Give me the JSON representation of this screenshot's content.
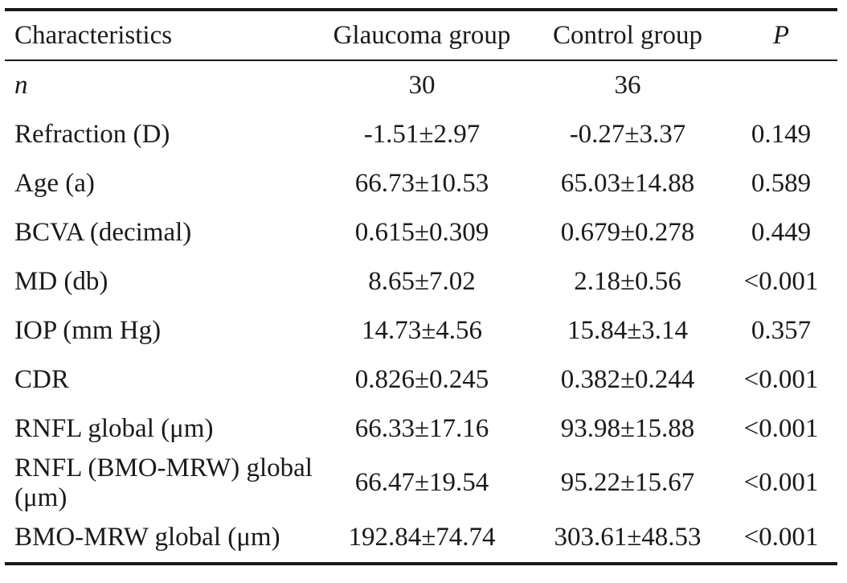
{
  "table": {
    "headers": {
      "characteristics": "Characteristics",
      "glaucoma": "Glaucoma group",
      "control": "Control group",
      "p": "P"
    },
    "rows": [
      {
        "label": "n",
        "glaucoma": "30",
        "control": "36",
        "p": ""
      },
      {
        "label": "Refraction (D)",
        "glaucoma": "-1.51±2.97",
        "control": "-0.27±3.37",
        "p": "0.149"
      },
      {
        "label": "Age (a)",
        "glaucoma": "66.73±10.53",
        "control": "65.03±14.88",
        "p": "0.589"
      },
      {
        "label": "BCVA (decimal)",
        "glaucoma": "0.615±0.309",
        "control": "0.679±0.278",
        "p": "0.449"
      },
      {
        "label": "MD (db)",
        "glaucoma": "8.65±7.02",
        "control": "2.18±0.56",
        "p": "<0.001"
      },
      {
        "label": "IOP (mm Hg)",
        "glaucoma": "14.73±4.56",
        "control": "15.84±3.14",
        "p": "0.357"
      },
      {
        "label": "CDR",
        "glaucoma": "0.826±0.245",
        "control": "0.382±0.244",
        "p": "<0.001"
      },
      {
        "label": "RNFL global (μm)",
        "glaucoma": "66.33±17.16",
        "control": "93.98±15.88",
        "p": "<0.001"
      },
      {
        "label": "RNFL (BMO-MRW) global (μm)",
        "glaucoma": "66.47±19.54",
        "control": "95.22±15.67",
        "p": "<0.001"
      },
      {
        "label": "BMO-MRW global (μm)",
        "glaucoma": "192.84±74.74",
        "control": "303.61±48.53",
        "p": "<0.001"
      }
    ]
  }
}
